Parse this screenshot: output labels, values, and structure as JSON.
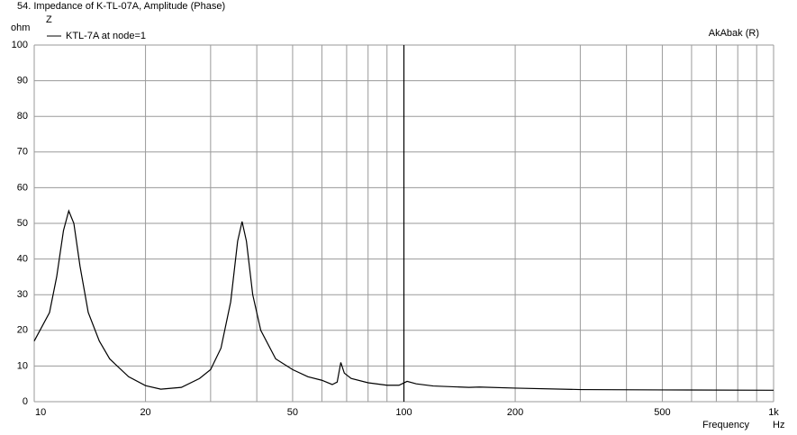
{
  "chart_data": {
    "type": "line",
    "title": "54. Impedance of K-TL-07A, Amplitude (Phase)",
    "y_label": "ohm",
    "y_name": "Z",
    "x_label": "Frequency",
    "x_unit": "Hz",
    "corner_text": "AkAbak (R)",
    "x": [
      10,
      11,
      11.5,
      12,
      12.4,
      12.8,
      13.3,
      14,
      15,
      16,
      18,
      20,
      22,
      25,
      28,
      30,
      32,
      34,
      35.5,
      36.5,
      37.5,
      39,
      41,
      45,
      50,
      55,
      60,
      64,
      66,
      67.5,
      69,
      72,
      80,
      90,
      97,
      102,
      108,
      120,
      150,
      160,
      200,
      300,
      500,
      1000
    ],
    "series": [
      {
        "name": "KTL-7A at node=1",
        "color": "#000000",
        "values": [
          17,
          25,
          35,
          48,
          53.5,
          50,
          38,
          25,
          17,
          12,
          7,
          4.5,
          3.5,
          4,
          6.5,
          9,
          15,
          28,
          45,
          50.5,
          45,
          30,
          20,
          12,
          9,
          7,
          6,
          4.8,
          5.5,
          11,
          8,
          6.5,
          5.3,
          4.6,
          4.6,
          5.7,
          5,
          4.4,
          4,
          4.1,
          3.8,
          3.4,
          3.3,
          3.2
        ]
      }
    ],
    "xlim": [
      10,
      1000
    ],
    "xscale": "log",
    "xticks": [
      10,
      20,
      50,
      100,
      200,
      500,
      {
        "value": 1000,
        "label": "1k"
      }
    ],
    "xgrid_minor": [
      30,
      40,
      60,
      70,
      80,
      90,
      300,
      400,
      600,
      700,
      800,
      900
    ],
    "xmarker": 100,
    "ylim": [
      0,
      100
    ],
    "yticks": [
      0,
      10,
      20,
      30,
      40,
      50,
      60,
      70,
      80,
      90,
      100
    ],
    "grid": true,
    "grid_color": "#9a9a9a"
  }
}
